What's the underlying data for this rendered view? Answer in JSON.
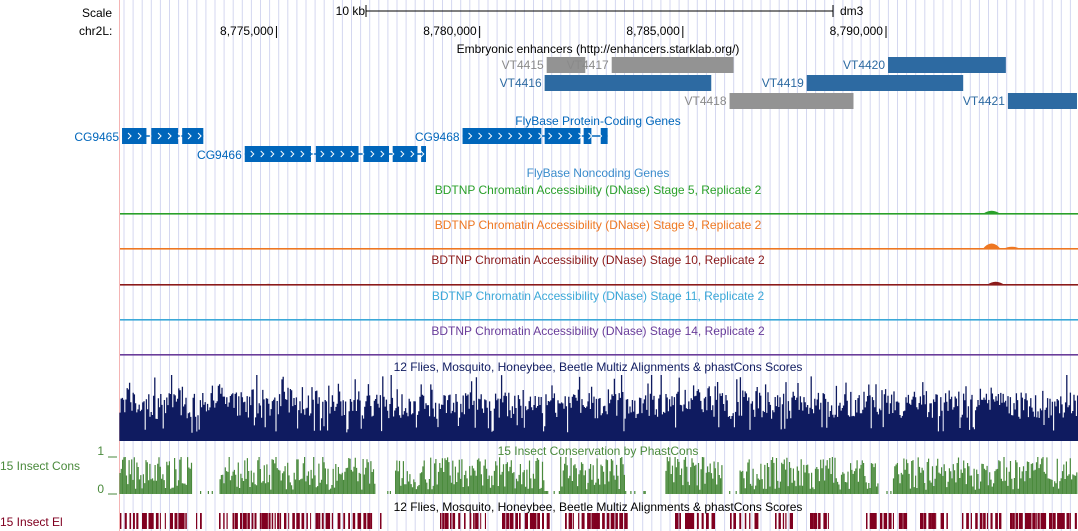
{
  "assembly": "dm3",
  "scale": {
    "label": "Scale",
    "size_label": "10 kb"
  },
  "ruler": {
    "chrom_label": "chr2L:",
    "positions": [
      "8,775,000",
      "8,780,000",
      "8,785,000",
      "8,790,000"
    ]
  },
  "colors": {
    "enhancer_blue": "#2d6aa2",
    "enhancer_gray": "#939393",
    "enhancer_label_gray": "#8a8a8a",
    "gene_blue": "#0066bb",
    "noncoding_title": "#3b8ccc",
    "stage5_green": "#2aa02a",
    "stage9_orange": "#ee7722",
    "stage10_maroon": "#8b1a1a",
    "stage11_cyan": "#3ba8d8",
    "stage14_purple": "#6a3d9a",
    "multiz_navy": "#0f1b60",
    "phastcons_green": "#4a8a3c",
    "elements_maroon": "#800020",
    "grid_blue": "#d4d7f0",
    "left_edge_red": "#f4b4b4"
  },
  "tracks": {
    "enhancers": {
      "title": "Embryonic enhancers (http://enhancers.starklab.org/)",
      "items": [
        {
          "label": "VT4415",
          "color": "gray",
          "start": 8781650,
          "end": 8782600,
          "row": 0
        },
        {
          "label": "VT4417",
          "color": "gray",
          "start": 8783250,
          "end": 8786250,
          "row": 0
        },
        {
          "label": "VT4416",
          "color": "blue",
          "start": 8781600,
          "end": 8785700,
          "row": 1
        },
        {
          "label": "VT4419",
          "color": "blue",
          "start": 8788050,
          "end": 8791900,
          "row": 1
        },
        {
          "label": "VT4420",
          "color": "blue",
          "start": 8790050,
          "end": 8792950,
          "row": 0
        },
        {
          "label": "VT4418",
          "color": "gray",
          "start": 8786150,
          "end": 8789200,
          "row": 2
        },
        {
          "label": "VT4421",
          "color": "blue",
          "start": 8793000,
          "end": 8794700,
          "row": 2
        }
      ]
    },
    "protein_coding": {
      "title": "FlyBase Protein-Coding Genes",
      "genes": [
        {
          "label": "CG9465",
          "row": 0,
          "start": 8771200,
          "end": 8773200,
          "exons": [
            [
              8771200,
              8771800
            ],
            [
              8771920,
              8772580
            ],
            [
              8772680,
              8773200
            ]
          ]
        },
        {
          "label": "CG9466",
          "row": 1,
          "start": 8774220,
          "end": 8778680,
          "exons": [
            [
              8774220,
              8775850
            ],
            [
              8775970,
              8777020
            ],
            [
              8777140,
              8777770
            ],
            [
              8777860,
              8778470
            ],
            [
              8778560,
              8778680
            ]
          ]
        },
        {
          "label": "CG9468",
          "row": 0,
          "start": 8779580,
          "end": 8783150,
          "exons": [
            [
              8779580,
              8781520
            ],
            [
              8781600,
              8782480
            ],
            [
              8782560,
              8782750
            ],
            [
              8782980,
              8783150
            ]
          ]
        }
      ]
    },
    "noncoding": {
      "title": "FlyBase Noncoding Genes"
    },
    "dnase": [
      {
        "title": "BDTNP Chromatin Accessibility (DNase) Stage 5, Replicate 2",
        "color_key": "stage5_green",
        "peaks": [
          [
            8792600,
            3
          ],
          [
            8782000,
            1
          ]
        ]
      },
      {
        "title": "BDTNP Chromatin Accessibility (DNase) Stage 9, Replicate 2",
        "color_key": "stage9_orange",
        "peaks": [
          [
            8792600,
            5
          ],
          [
            8793100,
            2
          ]
        ]
      },
      {
        "title": "BDTNP Chromatin Accessibility (DNase) Stage 10, Replicate 2",
        "color_key": "stage10_maroon",
        "peaks": [
          [
            8792700,
            3
          ],
          [
            8774800,
            1
          ],
          [
            8772100,
            1
          ]
        ]
      },
      {
        "title": "BDTNP Chromatin Accessibility (DNase) Stage 11, Replicate 2",
        "color_key": "stage11_cyan",
        "peaks": [
          [
            8775700,
            1
          ],
          [
            8793000,
            1
          ],
          [
            8790500,
            1
          ]
        ]
      },
      {
        "title": "BDTNP Chromatin Accessibility (DNase) Stage 14, Replicate 2",
        "color_key": "stage14_purple",
        "peaks": [
          [
            8779900,
            1
          ],
          [
            8788000,
            1
          ]
        ]
      }
    ],
    "multiz": {
      "title": "12 Flies, Mosquito, Honeybee, Beetle Multiz Alignments & phastCons Scores"
    },
    "phastcons": {
      "title": "15 Insect Conservation by PhastCons",
      "side_label": "15 Insect Cons",
      "max_label": "1",
      "min_label": "0"
    },
    "elements": {
      "title": "12 Flies, Mosquito, Honeybee, Beetle Multiz Alignments & phastCons Scores",
      "side_label": "15 Insect El"
    }
  }
}
